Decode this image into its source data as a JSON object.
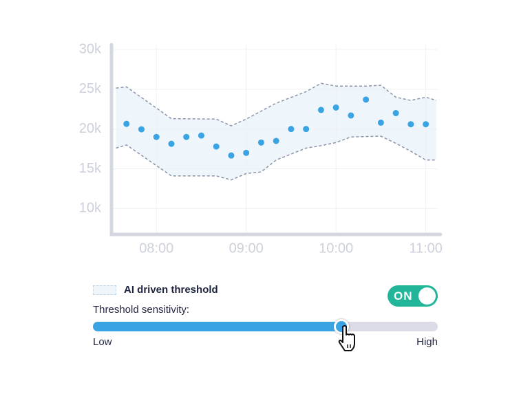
{
  "chart_data": {
    "type": "scatter",
    "x": [
      "07:40",
      "07:50",
      "08:00",
      "08:10",
      "08:20",
      "08:30",
      "08:40",
      "08:50",
      "09:00",
      "09:10",
      "09:20",
      "09:30",
      "09:40",
      "09:50",
      "10:00",
      "10:10",
      "10:20",
      "10:30",
      "10:40",
      "10:50",
      "11:00"
    ],
    "values": [
      20650,
      19960,
      19000,
      18140,
      19000,
      19180,
      17800,
      16670,
      17000,
      18300,
      18500,
      20000,
      20000,
      22400,
      22700,
      21700,
      23700,
      20800,
      22000,
      20600,
      20600
    ],
    "color": "#3aa3e3",
    "series": [
      {
        "name": "AI driven threshold",
        "color": "#8a93a8",
        "x": [
          "07:33",
          "07:40",
          "08:10",
          "08:40",
          "08:50",
          "09:00",
          "09:20",
          "09:40",
          "09:50",
          "10:00",
          "10:20",
          "10:30",
          "10:40",
          "10:50",
          "11:00",
          "11:07"
        ],
        "values": [
          25150,
          25300,
          21300,
          21250,
          20400,
          21250,
          23250,
          24700,
          25750,
          25400,
          25400,
          25500,
          24000,
          23600,
          24000,
          23600
        ]
      },
      {
        "color": "#8a93a8",
        "x": [
          "07:33",
          "07:40",
          "08:10",
          "08:40",
          "08:50",
          "09:00",
          "09:10",
          "09:20",
          "09:40",
          "09:50",
          "10:00",
          "10:10",
          "10:30",
          "10:40",
          "10:50",
          "11:00",
          "11:07"
        ],
        "values": [
          17600,
          18000,
          14100,
          14100,
          13600,
          14400,
          14600,
          16100,
          17600,
          17900,
          18300,
          19000,
          19100,
          18200,
          17200,
          16100,
          16100
        ]
      }
    ],
    "band_color": "#eef5fb",
    "xlim": [
      "07:30",
      "11:08"
    ],
    "xticks": [
      "08:00",
      "09:00",
      "10:00",
      "11:00"
    ],
    "ylim": [
      7000,
      30000
    ],
    "yticks": [
      {
        "value": 10000,
        "label": "10k"
      },
      {
        "value": 15000,
        "label": "15k"
      },
      {
        "value": 20000,
        "label": "20k"
      },
      {
        "value": 25000,
        "label": "25k"
      },
      {
        "value": 30000,
        "label": "30k"
      }
    ],
    "grid": true
  },
  "toggle": {
    "label": "ON",
    "on": true
  },
  "slider": {
    "label": "Threshold sensitivity:",
    "min_label": "Low",
    "max_label": "High",
    "value": 72
  }
}
